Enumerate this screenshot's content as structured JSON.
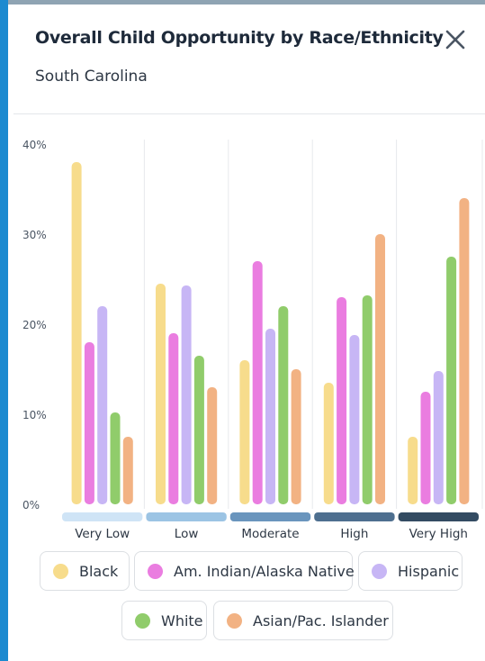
{
  "header": {
    "title": "Overall Child Opportunity by Race/Ethnicity",
    "subtitle": "South Carolina",
    "close_icon": "close-icon"
  },
  "colors": {
    "Black": "#f7dc8c",
    "Am. Indian/Alaska Native": "#ea7de0",
    "Hispanic": "#c7b6f5",
    "White": "#90cc6b",
    "Asian/Pac. Islander": "#f2b283",
    "levels": [
      "#cfe4f6",
      "#9cc4e4",
      "#6a95bd",
      "#4e6f8f",
      "#334b62"
    ]
  },
  "legend": [
    {
      "label": "Black"
    },
    {
      "label": "Am. Indian/Alaska Native"
    },
    {
      "label": "Hispanic"
    },
    {
      "label": "White"
    },
    {
      "label": "Asian/Pac. Islander"
    }
  ],
  "chart_data": {
    "type": "bar",
    "categories": [
      "Very Low",
      "Low",
      "Moderate",
      "High",
      "Very High"
    ],
    "ylim": [
      0,
      40
    ],
    "yticks": [
      "0%",
      "10%",
      "20%",
      "30%",
      "40%"
    ],
    "series": [
      {
        "name": "Black",
        "values": [
          38,
          24.5,
          16,
          13.5,
          7.5
        ]
      },
      {
        "name": "Am. Indian/Alaska Native",
        "values": [
          18,
          19,
          27,
          23,
          12.5
        ]
      },
      {
        "name": "Hispanic",
        "values": [
          22,
          24.3,
          19.5,
          18.8,
          14.8
        ]
      },
      {
        "name": "White",
        "values": [
          10.2,
          16.5,
          22,
          23.2,
          27.5
        ]
      },
      {
        "name": "Asian/Pac. Islander",
        "values": [
          7.5,
          13,
          15,
          30,
          34
        ]
      }
    ]
  }
}
